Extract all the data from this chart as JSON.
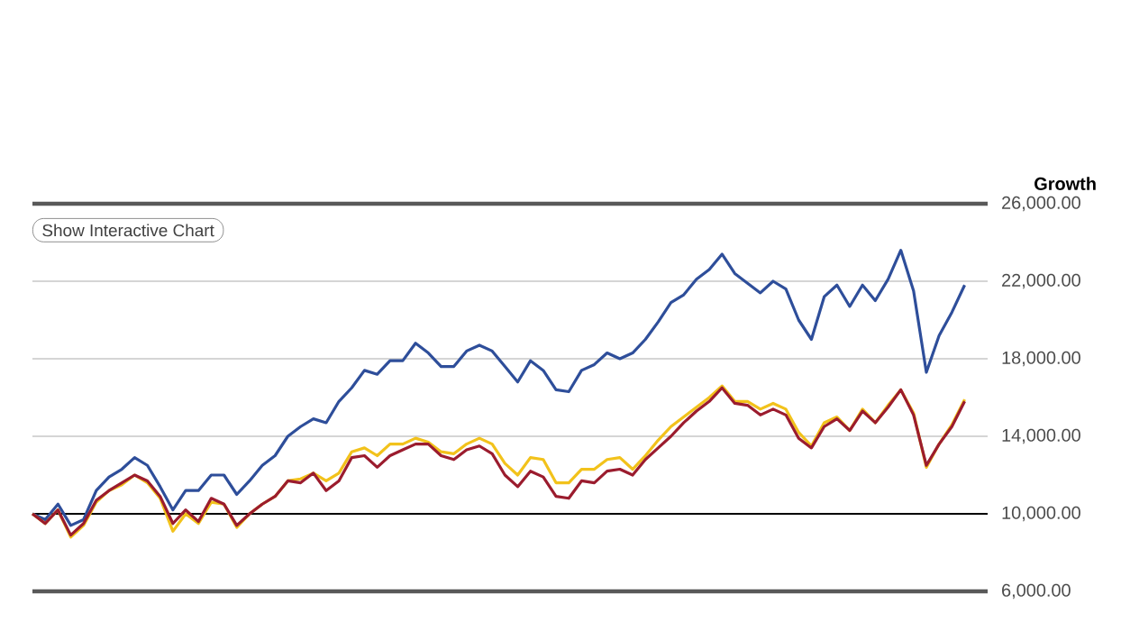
{
  "chart_data": {
    "type": "line",
    "ylabel": "Growth",
    "annotations": [
      "Show Interactive Chart"
    ],
    "categories": [
      null,
      null,
      null,
      null,
      null,
      null,
      null,
      null,
      null,
      null,
      null,
      null,
      null,
      null,
      null,
      null,
      null,
      null,
      null,
      null,
      null,
      null,
      null,
      null,
      null,
      null,
      null,
      null,
      null,
      null,
      null,
      null,
      null,
      null,
      null,
      null,
      null,
      null,
      null,
      null,
      null,
      null,
      null,
      null,
      null,
      null,
      null,
      null,
      null,
      null,
      null,
      null,
      null,
      null,
      null,
      null,
      null,
      null,
      null,
      null,
      null,
      null,
      null,
      null,
      null,
      null,
      null,
      null,
      null,
      null,
      null,
      null,
      null,
      null
    ],
    "series": [
      {
        "color": "#2e4e9a",
        "values": [
          10000,
          9700,
          10500,
          9400,
          9700,
          11200,
          11900,
          12300,
          12900,
          12500,
          11400,
          10200,
          11200,
          11200,
          12000,
          12000,
          11000,
          11700,
          12500,
          13000,
          14000,
          14500,
          14900,
          14700,
          15800,
          16500,
          17400,
          17200,
          17900,
          17900,
          18800,
          18300,
          17600,
          17600,
          18400,
          18700,
          18400,
          17600,
          16800,
          17900,
          17400,
          16400,
          16300,
          17400,
          17700,
          18300,
          18000,
          18300,
          19000,
          19900,
          20900,
          21300,
          22100,
          22600,
          23400,
          22400,
          21900,
          21400,
          22000,
          21600,
          20000,
          19000,
          21200,
          21800,
          20700,
          21800,
          21000,
          22100,
          23600,
          21500,
          17300,
          19200,
          20400,
          21800
        ]
      },
      {
        "color": "#f2c21b",
        "values": [
          10000,
          9500,
          10200,
          8800,
          9400,
          10600,
          11200,
          11500,
          12000,
          11600,
          10800,
          9100,
          10000,
          9500,
          10600,
          10500,
          9300,
          10000,
          10500,
          10900,
          11700,
          11800,
          12100,
          11700,
          12100,
          13200,
          13400,
          13000,
          13600,
          13600,
          13900,
          13700,
          13200,
          13100,
          13600,
          13900,
          13600,
          12600,
          12000,
          12900,
          12800,
          11600,
          11600,
          12300,
          12300,
          12800,
          12900,
          12300,
          13000,
          13800,
          14500,
          15000,
          15500,
          16000,
          16600,
          15800,
          15800,
          15400,
          15700,
          15400,
          14200,
          13500,
          14700,
          15000,
          14300,
          15400,
          14700,
          15600,
          16400,
          15200,
          12400,
          13600,
          14600,
          15900
        ]
      },
      {
        "color": "#9b1c2e",
        "values": [
          10000,
          9500,
          10200,
          8900,
          9500,
          10700,
          11200,
          11600,
          12000,
          11700,
          10900,
          9500,
          10200,
          9600,
          10800,
          10500,
          9400,
          10000,
          10500,
          10900,
          11700,
          11600,
          12100,
          11200,
          11700,
          12900,
          13000,
          12400,
          13000,
          13300,
          13600,
          13600,
          13000,
          12800,
          13300,
          13500,
          13100,
          12000,
          11400,
          12200,
          11900,
          10900,
          10800,
          11700,
          11600,
          12200,
          12300,
          12000,
          12800,
          13400,
          14000,
          14700,
          15300,
          15800,
          16500,
          15700,
          15600,
          15100,
          15400,
          15100,
          13900,
          13400,
          14500,
          14900,
          14300,
          15300,
          14700,
          15500,
          16400,
          15100,
          12500,
          13600,
          14500,
          15800
        ]
      }
    ],
    "ylim": [
      6000,
      26000
    ],
    "yticks": [
      {
        "value": 6000,
        "label": "6,000.00"
      },
      {
        "value": 10000,
        "label": "10,000.00"
      },
      {
        "value": 14000,
        "label": "14,000.00"
      },
      {
        "value": 18000,
        "label": "18,000.00"
      },
      {
        "value": 22000,
        "label": "22,000.00"
      },
      {
        "value": 26000,
        "label": "26,000.00"
      }
    ],
    "ref_lines": [
      {
        "axis": "y",
        "value": 10000,
        "color": "#000000"
      }
    ],
    "grid": "y",
    "tick_labels": "y"
  }
}
